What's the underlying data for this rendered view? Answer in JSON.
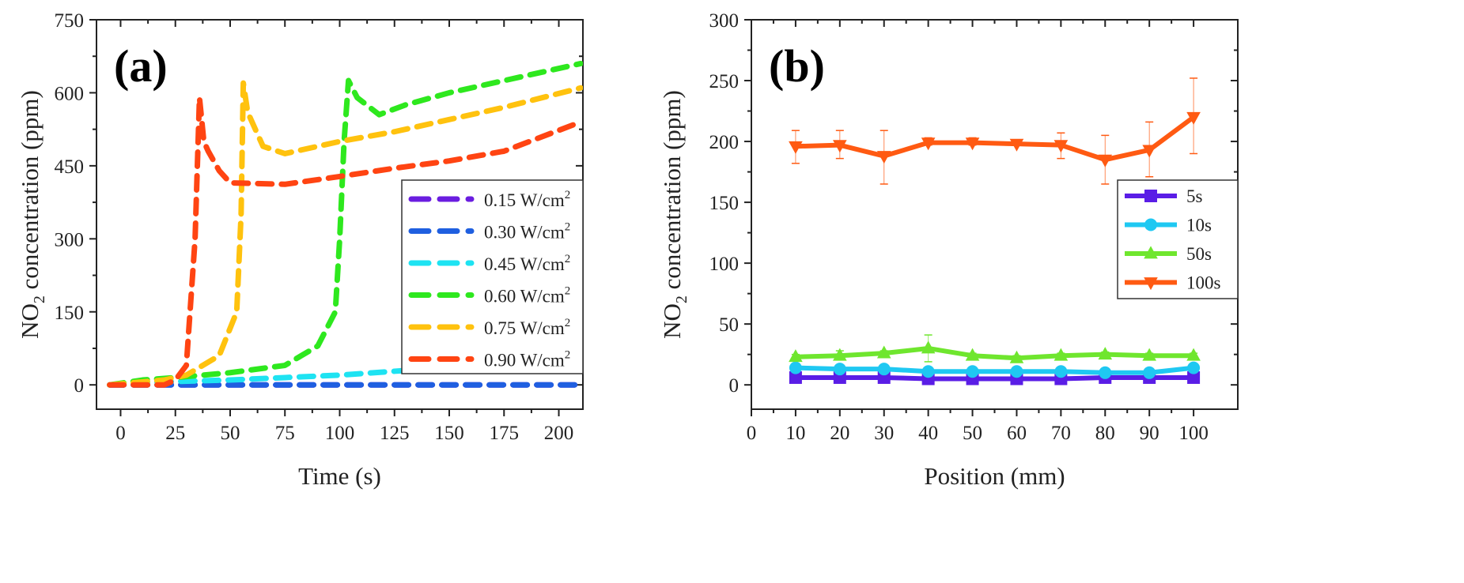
{
  "chart_data": [
    {
      "type": "line",
      "panel_label": "(a)",
      "xlabel": "Time (s)",
      "ylabel": "NO2 concentration (ppm)",
      "ylabel_parts": {
        "pre": "NO",
        "sub": "2",
        "post": " concentration (ppm)"
      },
      "xlim": [
        -11,
        211
      ],
      "ylim": [
        -50,
        750
      ],
      "xticks": [
        0,
        25,
        50,
        75,
        100,
        125,
        150,
        175,
        200
      ],
      "yticks": [
        0,
        150,
        300,
        450,
        600,
        750
      ],
      "grid": false,
      "legend_position": "right",
      "line_style": "dashed",
      "series": [
        {
          "name": "0.15 W/cm2",
          "label": "0.15 W/cm",
          "sup": "2",
          "color": "#6a1de0",
          "x": [
            -5,
            50,
            100,
            150,
            210
          ],
          "y": [
            0,
            0,
            0,
            0,
            0
          ]
        },
        {
          "name": "0.30 W/cm2",
          "label": "0.30 W/cm",
          "sup": "2",
          "color": "#1f5fe0",
          "x": [
            -5,
            50,
            100,
            150,
            210
          ],
          "y": [
            0,
            0,
            0,
            0,
            0
          ]
        },
        {
          "name": "0.45 W/cm2",
          "label": "0.45 W/cm",
          "sup": "2",
          "color": "#1ee3f2",
          "x": [
            -5,
            10,
            50,
            75,
            100,
            125,
            150,
            175,
            210
          ],
          "y": [
            0,
            5,
            10,
            15,
            20,
            28,
            35,
            45,
            65
          ]
        },
        {
          "name": "0.60 W/cm2",
          "label": "0.60 W/cm",
          "sup": "2",
          "color": "#2ee81e",
          "x": [
            -5,
            10,
            25,
            50,
            75,
            90,
            98,
            100,
            102,
            104,
            108,
            118,
            130,
            150,
            175,
            210
          ],
          "y": [
            0,
            10,
            15,
            25,
            40,
            80,
            150,
            300,
            500,
            625,
            590,
            555,
            575,
            600,
            625,
            660
          ]
        },
        {
          "name": "0.75 W/cm2",
          "label": "0.75 W/cm",
          "sup": "2",
          "color": "#ffc20e",
          "x": [
            -5,
            20,
            30,
            45,
            53,
            55,
            56,
            58,
            65,
            75,
            100,
            125,
            150,
            175,
            210
          ],
          "y": [
            0,
            10,
            20,
            60,
            150,
            350,
            620,
            560,
            490,
            475,
            500,
            520,
            545,
            570,
            610
          ]
        },
        {
          "name": "0.90 W/cm2",
          "label": "0.90 W/cm",
          "sup": "2",
          "color": "#ff4412",
          "x": [
            -5,
            20,
            25,
            30,
            34,
            36,
            38,
            40,
            45,
            50,
            75,
            100,
            125,
            150,
            175,
            210
          ],
          "y": [
            0,
            0,
            10,
            40,
            300,
            590,
            500,
            480,
            440,
            415,
            412,
            428,
            445,
            460,
            480,
            540
          ]
        }
      ]
    },
    {
      "type": "line",
      "panel_label": "(b)",
      "xlabel": "Position (mm)",
      "ylabel": "NO2 concentration (ppm)",
      "ylabel_parts": {
        "pre": "NO",
        "sub": "2",
        "post": " concentration (ppm)"
      },
      "xlim": [
        0,
        110
      ],
      "ylim": [
        -20,
        300
      ],
      "xticks": [
        0,
        10,
        20,
        30,
        40,
        50,
        60,
        70,
        80,
        90,
        100
      ],
      "yticks": [
        0,
        50,
        100,
        150,
        200,
        250,
        300
      ],
      "grid": false,
      "legend_position": "right",
      "x": [
        10,
        20,
        30,
        40,
        50,
        60,
        70,
        80,
        90,
        100
      ],
      "series": [
        {
          "name": "5s",
          "marker": "square",
          "color": "#5a1de6",
          "y": [
            6,
            6,
            6,
            5,
            5,
            5,
            5,
            6,
            6,
            6
          ]
        },
        {
          "name": "10s",
          "marker": "circle",
          "color": "#1fc8f2",
          "y": [
            14,
            13,
            13,
            11,
            11,
            11,
            11,
            10,
            10,
            14
          ]
        },
        {
          "name": "50s",
          "marker": "triangle-up",
          "color": "#6fe62e",
          "y": [
            23,
            24,
            26,
            30,
            24,
            22,
            24,
            25,
            24,
            24
          ],
          "err_low": [
            21,
            21,
            24,
            19,
            22,
            20,
            22,
            23,
            22,
            22
          ],
          "err_high": [
            25,
            28,
            28,
            41,
            26,
            24,
            26,
            27,
            26,
            26
          ]
        },
        {
          "name": "100s",
          "marker": "triangle-down",
          "color": "#ff5a12",
          "y": [
            196,
            197,
            188,
            199,
            199,
            198,
            197,
            185,
            193,
            220
          ],
          "err_low": [
            182,
            186,
            165,
            197,
            197,
            197,
            186,
            165,
            171,
            190
          ],
          "err_high": [
            209,
            209,
            209,
            203,
            203,
            199,
            207,
            205,
            216,
            252
          ]
        }
      ]
    }
  ]
}
